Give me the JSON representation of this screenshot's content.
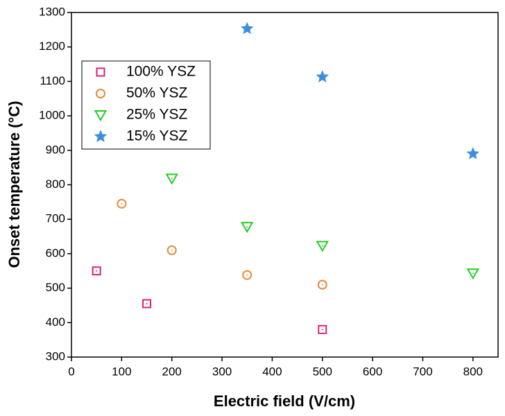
{
  "chart_data": {
    "type": "scatter",
    "x_label": "Electric field (V/cm)",
    "y_label": "Onset temperature (°C)",
    "xlim": [
      0,
      850
    ],
    "xticks": [
      0,
      100,
      200,
      300,
      400,
      500,
      600,
      700,
      800
    ],
    "ylim": [
      300,
      1300
    ],
    "yticks": [
      300,
      400,
      500,
      600,
      700,
      800,
      900,
      1000,
      1100,
      1200,
      1300
    ],
    "legend": "upper left",
    "series": [
      {
        "name": "100% YSZ",
        "color": "#d6237a",
        "marker": "square",
        "x": [
          50,
          150,
          500
        ],
        "values": [
          550,
          455,
          380
        ]
      },
      {
        "name": "50% YSZ",
        "color": "#e8883a",
        "marker": "circle",
        "x": [
          100,
          200,
          350,
          500
        ],
        "values": [
          745,
          610,
          538,
          510
        ]
      },
      {
        "name": "25% YSZ",
        "color": "#22cc22",
        "marker": "triangle-down",
        "x": [
          200,
          350,
          500,
          800
        ],
        "values": [
          818,
          678,
          623,
          543
        ]
      },
      {
        "name": "15% YSZ",
        "color": "#3b8fe0",
        "marker": "star",
        "x": [
          350,
          500,
          800
        ],
        "values": [
          1253,
          1113,
          890
        ]
      }
    ]
  }
}
